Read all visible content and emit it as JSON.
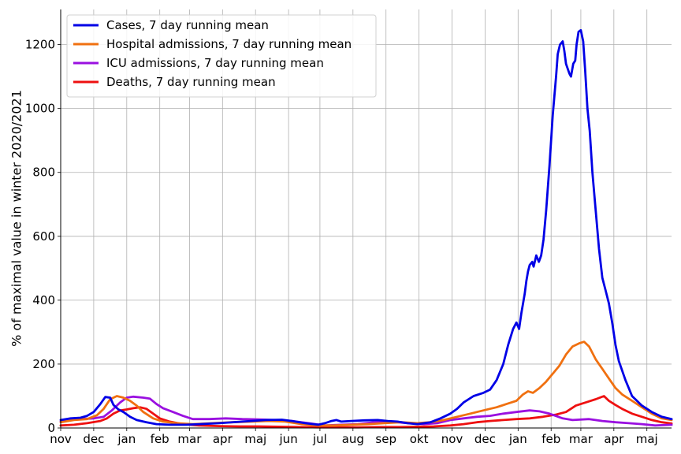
{
  "chart_data": {
    "type": "line",
    "title": "",
    "xlabel": "",
    "ylabel": "% of maximal value in winter 2020/2021",
    "ylim": [
      0,
      1310
    ],
    "xlim": [
      0,
      18.5
    ],
    "yticks": [
      0,
      200,
      400,
      600,
      800,
      1000,
      1200
    ],
    "xticks": [
      {
        "x": 0,
        "label": "nov"
      },
      {
        "x": 1,
        "label": "dec"
      },
      {
        "x": 2,
        "label": "jan"
      },
      {
        "x": 3,
        "label": "feb"
      },
      {
        "x": 3.9,
        "label": "mar"
      },
      {
        "x": 4.9,
        "label": "apr"
      },
      {
        "x": 5.9,
        "label": "maj"
      },
      {
        "x": 6.9,
        "label": "jun"
      },
      {
        "x": 7.85,
        "label": "jul"
      },
      {
        "x": 8.85,
        "label": "aug"
      },
      {
        "x": 9.85,
        "label": "sep"
      },
      {
        "x": 10.85,
        "label": "okt"
      },
      {
        "x": 11.85,
        "label": "nov"
      },
      {
        "x": 12.85,
        "label": "dec"
      },
      {
        "x": 13.85,
        "label": "jan"
      },
      {
        "x": 14.85,
        "label": "feb"
      },
      {
        "x": 15.75,
        "label": "mar"
      },
      {
        "x": 16.75,
        "label": "apr"
      },
      {
        "x": 17.75,
        "label": "maj"
      }
    ],
    "grid": true,
    "legend_position": "top-left",
    "series": [
      {
        "name": "Cases, 7 day running mean",
        "color": "#0000e6",
        "points": [
          [
            0,
            25
          ],
          [
            0.3,
            30
          ],
          [
            0.6,
            32
          ],
          [
            0.8,
            38
          ],
          [
            1.0,
            50
          ],
          [
            1.2,
            75
          ],
          [
            1.35,
            97
          ],
          [
            1.5,
            95
          ],
          [
            1.6,
            72
          ],
          [
            1.75,
            58
          ],
          [
            1.9,
            50
          ],
          [
            2.1,
            35
          ],
          [
            2.3,
            25
          ],
          [
            2.6,
            18
          ],
          [
            2.9,
            12
          ],
          [
            3.3,
            10
          ],
          [
            3.8,
            10
          ],
          [
            4.2,
            12
          ],
          [
            4.8,
            15
          ],
          [
            5.5,
            20
          ],
          [
            6.2,
            25
          ],
          [
            6.7,
            26
          ],
          [
            7.0,
            22
          ],
          [
            7.4,
            15
          ],
          [
            7.8,
            10
          ],
          [
            8.0,
            15
          ],
          [
            8.2,
            22
          ],
          [
            8.35,
            25
          ],
          [
            8.5,
            20
          ],
          [
            8.8,
            22
          ],
          [
            9.2,
            24
          ],
          [
            9.6,
            25
          ],
          [
            9.9,
            22
          ],
          [
            10.2,
            20
          ],
          [
            10.5,
            15
          ],
          [
            10.8,
            12
          ],
          [
            11.2,
            18
          ],
          [
            11.5,
            30
          ],
          [
            11.8,
            45
          ],
          [
            12.0,
            60
          ],
          [
            12.2,
            80
          ],
          [
            12.5,
            100
          ],
          [
            12.8,
            110
          ],
          [
            13.0,
            120
          ],
          [
            13.2,
            150
          ],
          [
            13.4,
            200
          ],
          [
            13.55,
            260
          ],
          [
            13.7,
            310
          ],
          [
            13.8,
            330
          ],
          [
            13.88,
            310
          ],
          [
            13.95,
            360
          ],
          [
            14.05,
            420
          ],
          [
            14.1,
            460
          ],
          [
            14.15,
            490
          ],
          [
            14.2,
            510
          ],
          [
            14.28,
            520
          ],
          [
            14.32,
            505
          ],
          [
            14.4,
            540
          ],
          [
            14.48,
            520
          ],
          [
            14.55,
            540
          ],
          [
            14.62,
            590
          ],
          [
            14.7,
            680
          ],
          [
            14.8,
            820
          ],
          [
            14.9,
            980
          ],
          [
            15.0,
            1100
          ],
          [
            15.05,
            1170
          ],
          [
            15.12,
            1200
          ],
          [
            15.2,
            1210
          ],
          [
            15.25,
            1180
          ],
          [
            15.3,
            1140
          ],
          [
            15.4,
            1110
          ],
          [
            15.45,
            1100
          ],
          [
            15.52,
            1140
          ],
          [
            15.58,
            1150
          ],
          [
            15.62,
            1200
          ],
          [
            15.68,
            1240
          ],
          [
            15.75,
            1245
          ],
          [
            15.82,
            1210
          ],
          [
            15.88,
            1120
          ],
          [
            15.95,
            1000
          ],
          [
            16.02,
            930
          ],
          [
            16.1,
            800
          ],
          [
            16.2,
            680
          ],
          [
            16.3,
            560
          ],
          [
            16.4,
            470
          ],
          [
            16.5,
            430
          ],
          [
            16.6,
            390
          ],
          [
            16.7,
            330
          ],
          [
            16.8,
            260
          ],
          [
            16.9,
            210
          ],
          [
            17.1,
            150
          ],
          [
            17.3,
            100
          ],
          [
            17.6,
            70
          ],
          [
            17.9,
            50
          ],
          [
            18.2,
            35
          ],
          [
            18.5,
            28
          ]
        ]
      },
      {
        "name": "Hospital admissions, 7 day running mean",
        "color": "#f07010",
        "points": [
          [
            0,
            18
          ],
          [
            0.4,
            25
          ],
          [
            0.8,
            28
          ],
          [
            1.1,
            40
          ],
          [
            1.3,
            60
          ],
          [
            1.5,
            90
          ],
          [
            1.7,
            100
          ],
          [
            1.9,
            95
          ],
          [
            2.1,
            85
          ],
          [
            2.3,
            70
          ],
          [
            2.5,
            50
          ],
          [
            2.8,
            30
          ],
          [
            3.1,
            20
          ],
          [
            3.5,
            15
          ],
          [
            4.0,
            12
          ],
          [
            4.6,
            15
          ],
          [
            5.2,
            18
          ],
          [
            5.8,
            20
          ],
          [
            6.3,
            22
          ],
          [
            6.8,
            20
          ],
          [
            7.3,
            12
          ],
          [
            7.8,
            8
          ],
          [
            8.3,
            8
          ],
          [
            8.8,
            10
          ],
          [
            9.3,
            12
          ],
          [
            9.8,
            15
          ],
          [
            10.3,
            18
          ],
          [
            10.8,
            15
          ],
          [
            11.2,
            18
          ],
          [
            11.6,
            25
          ],
          [
            12.0,
            35
          ],
          [
            12.4,
            45
          ],
          [
            12.8,
            55
          ],
          [
            13.2,
            65
          ],
          [
            13.5,
            75
          ],
          [
            13.8,
            85
          ],
          [
            14.0,
            105
          ],
          [
            14.15,
            115
          ],
          [
            14.3,
            110
          ],
          [
            14.5,
            125
          ],
          [
            14.7,
            145
          ],
          [
            14.9,
            170
          ],
          [
            15.1,
            195
          ],
          [
            15.3,
            230
          ],
          [
            15.5,
            255
          ],
          [
            15.7,
            265
          ],
          [
            15.85,
            270
          ],
          [
            16.0,
            255
          ],
          [
            16.2,
            215
          ],
          [
            16.4,
            185
          ],
          [
            16.6,
            155
          ],
          [
            16.8,
            125
          ],
          [
            17.0,
            105
          ],
          [
            17.3,
            85
          ],
          [
            17.6,
            65
          ],
          [
            17.9,
            45
          ],
          [
            18.2,
            30
          ],
          [
            18.5,
            25
          ]
        ]
      },
      {
        "name": "ICU admissions, 7 day running mean",
        "color": "#9a10e0",
        "points": [
          [
            0,
            20
          ],
          [
            0.3,
            25
          ],
          [
            0.6,
            28
          ],
          [
            1.0,
            30
          ],
          [
            1.3,
            35
          ],
          [
            1.55,
            55
          ],
          [
            1.8,
            80
          ],
          [
            2.0,
            95
          ],
          [
            2.2,
            98
          ],
          [
            2.5,
            95
          ],
          [
            2.7,
            92
          ],
          [
            2.9,
            75
          ],
          [
            3.1,
            62
          ],
          [
            3.4,
            50
          ],
          [
            3.7,
            38
          ],
          [
            4.0,
            28
          ],
          [
            4.5,
            28
          ],
          [
            5.0,
            30
          ],
          [
            5.5,
            28
          ],
          [
            6.0,
            27
          ],
          [
            6.5,
            25
          ],
          [
            7.0,
            22
          ],
          [
            7.5,
            15
          ],
          [
            8.0,
            8
          ],
          [
            8.5,
            10
          ],
          [
            9.0,
            12
          ],
          [
            9.5,
            18
          ],
          [
            10.0,
            20
          ],
          [
            10.5,
            15
          ],
          [
            11.0,
            12
          ],
          [
            11.4,
            15
          ],
          [
            11.8,
            25
          ],
          [
            12.2,
            30
          ],
          [
            12.6,
            35
          ],
          [
            13.0,
            38
          ],
          [
            13.4,
            45
          ],
          [
            13.8,
            50
          ],
          [
            14.2,
            55
          ],
          [
            14.5,
            52
          ],
          [
            14.8,
            45
          ],
          [
            15.2,
            30
          ],
          [
            15.5,
            25
          ],
          [
            16.0,
            28
          ],
          [
            16.4,
            22
          ],
          [
            16.8,
            18
          ],
          [
            17.2,
            15
          ],
          [
            17.6,
            12
          ],
          [
            18.0,
            8
          ],
          [
            18.5,
            10
          ]
        ]
      },
      {
        "name": "Deaths, 7 day running mean",
        "color": "#ee1010",
        "points": [
          [
            0,
            8
          ],
          [
            0.4,
            10
          ],
          [
            0.8,
            15
          ],
          [
            1.2,
            22
          ],
          [
            1.4,
            30
          ],
          [
            1.6,
            45
          ],
          [
            1.8,
            55
          ],
          [
            2.0,
            58
          ],
          [
            2.2,
            62
          ],
          [
            2.4,
            65
          ],
          [
            2.6,
            60
          ],
          [
            2.8,
            45
          ],
          [
            3.0,
            30
          ],
          [
            3.3,
            20
          ],
          [
            3.7,
            12
          ],
          [
            4.2,
            8
          ],
          [
            4.8,
            6
          ],
          [
            5.4,
            5
          ],
          [
            6.0,
            5
          ],
          [
            6.6,
            4
          ],
          [
            7.2,
            3
          ],
          [
            7.8,
            2
          ],
          [
            8.4,
            2
          ],
          [
            9.0,
            2
          ],
          [
            9.6,
            3
          ],
          [
            10.2,
            3
          ],
          [
            10.8,
            4
          ],
          [
            11.3,
            5
          ],
          [
            11.8,
            8
          ],
          [
            12.2,
            12
          ],
          [
            12.6,
            18
          ],
          [
            13.0,
            22
          ],
          [
            13.4,
            25
          ],
          [
            13.8,
            28
          ],
          [
            14.2,
            30
          ],
          [
            14.6,
            35
          ],
          [
            15.0,
            42
          ],
          [
            15.3,
            50
          ],
          [
            15.6,
            70
          ],
          [
            15.9,
            80
          ],
          [
            16.2,
            90
          ],
          [
            16.45,
            100
          ],
          [
            16.6,
            85
          ],
          [
            16.8,
            72
          ],
          [
            17.0,
            60
          ],
          [
            17.3,
            45
          ],
          [
            17.6,
            35
          ],
          [
            17.9,
            25
          ],
          [
            18.2,
            18
          ],
          [
            18.5,
            14
          ]
        ]
      }
    ]
  }
}
